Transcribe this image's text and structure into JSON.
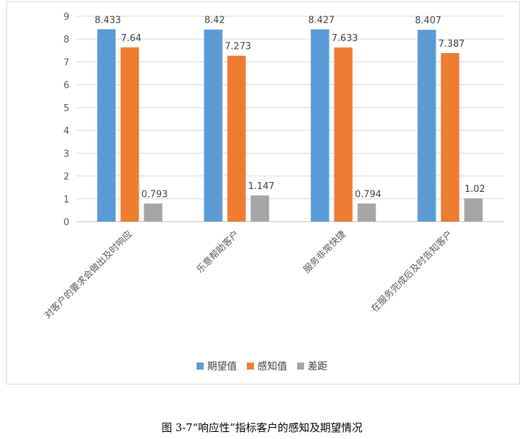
{
  "chart_data": {
    "type": "bar",
    "categories": [
      "对客户的要求会做出及时响应",
      "乐意帮助客户",
      "服务非常快捷",
      "在服务完成后及时告知客户"
    ],
    "series": [
      {
        "name": "期望值",
        "values": [
          8.433,
          8.42,
          8.427,
          8.407
        ],
        "labels": [
          "8.433",
          "8.42",
          "8.427",
          "8.407"
        ],
        "color": "#5B9BD5"
      },
      {
        "name": "感知值",
        "values": [
          7.64,
          7.273,
          7.633,
          7.387
        ],
        "labels": [
          "7.64",
          "7.273",
          "7.633",
          "7.387"
        ],
        "color": "#ED7D31"
      },
      {
        "name": "差距",
        "values": [
          0.793,
          1.147,
          0.794,
          1.02
        ],
        "labels": [
          "0.793",
          "1.147",
          "0.794",
          "1.02"
        ],
        "color": "#A5A5A5"
      }
    ],
    "ylim": [
      0,
      9
    ],
    "yticks": [
      "0",
      "1",
      "2",
      "3",
      "4",
      "5",
      "6",
      "7",
      "8",
      "9"
    ],
    "grid": true,
    "legend_position": "bottom"
  },
  "caption": "图 3-7“响应性”指标客户的感知及期望情况"
}
